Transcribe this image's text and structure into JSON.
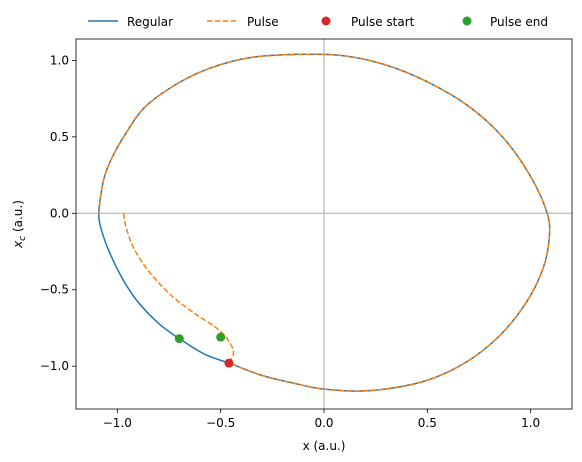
{
  "chart_data": {
    "type": "line",
    "title": "",
    "xlabel": "x (a.u.)",
    "ylabel_main": "x",
    "ylabel_sub": "c",
    "ylabel_unit": " (a.u.)",
    "xlim": [
      -1.2,
      1.2
    ],
    "ylim": [
      -1.28,
      1.14
    ],
    "xticks": [
      -1.0,
      -0.5,
      0.0,
      0.5,
      1.0
    ],
    "xtick_labels": [
      "−1.0",
      "−0.5",
      "0.0",
      "0.5",
      "1.0"
    ],
    "yticks": [
      -1.0,
      -0.5,
      0.0,
      0.5,
      1.0
    ],
    "ytick_labels": [
      "−1.0",
      "−0.5",
      "0.0",
      "0.5",
      "1.0"
    ],
    "reference_lines": {
      "x": 0,
      "y": 0,
      "color": "#aaaaaa"
    },
    "grid": false,
    "legend_position": "top-outside",
    "series": [
      {
        "name": "Regular",
        "style": "solid",
        "color": "#1f77b4",
        "points": [
          [
            -0.46,
            -0.98
          ],
          [
            -0.58,
            -0.92
          ],
          [
            -0.7,
            -0.82
          ],
          [
            -0.8,
            -0.72
          ],
          [
            -0.9,
            -0.58
          ],
          [
            -0.97,
            -0.44
          ],
          [
            -1.03,
            -0.28
          ],
          [
            -1.07,
            -0.14
          ],
          [
            -1.09,
            -0.02
          ],
          [
            -1.08,
            0.12
          ],
          [
            -1.06,
            0.25
          ],
          [
            -1.02,
            0.38
          ],
          [
            -0.96,
            0.52
          ],
          [
            -0.87,
            0.69
          ],
          [
            -0.72,
            0.84
          ],
          [
            -0.55,
            0.95
          ],
          [
            -0.35,
            1.02
          ],
          [
            -0.1,
            1.04
          ],
          [
            0.1,
            1.03
          ],
          [
            0.3,
            0.97
          ],
          [
            0.5,
            0.86
          ],
          [
            0.7,
            0.7
          ],
          [
            0.87,
            0.49
          ],
          [
            1.0,
            0.24
          ],
          [
            1.08,
            0.0
          ],
          [
            1.09,
            -0.16
          ],
          [
            1.06,
            -0.36
          ],
          [
            0.98,
            -0.58
          ],
          [
            0.85,
            -0.8
          ],
          [
            0.68,
            -0.98
          ],
          [
            0.48,
            -1.1
          ],
          [
            0.22,
            -1.16
          ],
          [
            0.0,
            -1.15
          ],
          [
            -0.15,
            -1.11
          ],
          [
            -0.3,
            -1.06
          ],
          [
            -0.46,
            -0.98
          ]
        ]
      },
      {
        "name": "Pulse",
        "style": "dashed",
        "color": "#ff7f0e",
        "points": [
          [
            -0.97,
            0.0
          ],
          [
            -0.96,
            -0.08
          ],
          [
            -0.93,
            -0.2
          ],
          [
            -0.88,
            -0.32
          ],
          [
            -0.81,
            -0.44
          ],
          [
            -0.72,
            -0.56
          ],
          [
            -0.62,
            -0.66
          ],
          [
            -0.53,
            -0.74
          ],
          [
            -0.48,
            -0.8
          ],
          [
            -0.46,
            -0.84
          ],
          [
            -0.44,
            -0.89
          ],
          [
            -0.44,
            -0.94
          ],
          [
            -0.45,
            -0.98
          ],
          [
            -0.3,
            -1.06
          ],
          [
            -0.15,
            -1.11
          ],
          [
            0.0,
            -1.15
          ],
          [
            0.22,
            -1.16
          ],
          [
            0.48,
            -1.1
          ],
          [
            0.68,
            -0.98
          ],
          [
            0.85,
            -0.8
          ],
          [
            0.98,
            -0.58
          ],
          [
            1.06,
            -0.36
          ],
          [
            1.09,
            -0.16
          ],
          [
            1.08,
            0.0
          ],
          [
            1.0,
            0.24
          ],
          [
            0.87,
            0.49
          ],
          [
            0.7,
            0.7
          ],
          [
            0.5,
            0.86
          ],
          [
            0.3,
            0.97
          ],
          [
            0.1,
            1.03
          ],
          [
            -0.1,
            1.04
          ],
          [
            -0.35,
            1.02
          ],
          [
            -0.55,
            0.95
          ],
          [
            -0.72,
            0.84
          ],
          [
            -0.87,
            0.69
          ],
          [
            -0.96,
            0.52
          ],
          [
            -1.02,
            0.38
          ],
          [
            -1.06,
            0.25
          ],
          [
            -1.08,
            0.12
          ],
          [
            -1.09,
            -0.02
          ]
        ]
      }
    ],
    "markers": [
      {
        "name": "Pulse start",
        "color": "#d62728",
        "points": [
          [
            -0.46,
            -0.98
          ]
        ]
      },
      {
        "name": "Pulse end",
        "color": "#2ca02c",
        "points": [
          [
            -0.7,
            -0.82
          ],
          [
            -0.5,
            -0.81
          ]
        ]
      }
    ]
  }
}
